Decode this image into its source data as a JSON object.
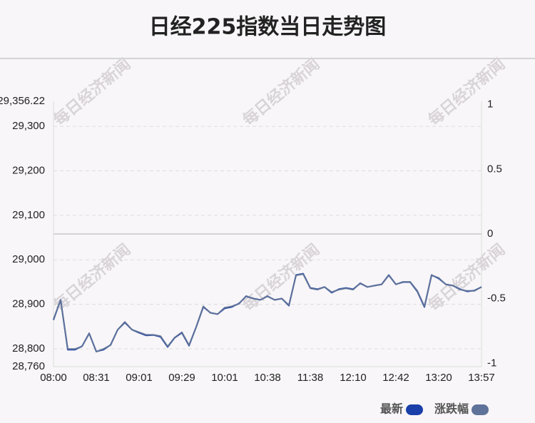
{
  "chart_data": {
    "type": "line",
    "title": "日经225指数当日走势图",
    "watermark": "每日经济新闻",
    "categories": [
      "08:00",
      null,
      null,
      null,
      null,
      null,
      "08:31",
      null,
      null,
      null,
      null,
      null,
      "09:01",
      null,
      null,
      null,
      null,
      null,
      "09:29",
      null,
      null,
      null,
      null,
      null,
      "10:01",
      null,
      null,
      null,
      null,
      null,
      "10:38",
      null,
      null,
      null,
      null,
      null,
      "11:38",
      null,
      null,
      null,
      null,
      null,
      "12:10",
      null,
      null,
      null,
      null,
      null,
      "12:42",
      null,
      null,
      null,
      null,
      null,
      "13:20",
      null,
      null,
      null,
      null,
      null,
      "13:57"
    ],
    "series": [
      {
        "name": "最新",
        "color": "#1a3fa8",
        "values": [
          28865,
          28910,
          28798,
          28798,
          28806,
          28835,
          28794,
          28798,
          28809,
          28843,
          28859,
          28843,
          28836,
          28830,
          28831,
          28827,
          28804,
          28825,
          28836,
          28807,
          28849,
          28894,
          28881,
          28878,
          28891,
          28894,
          28902,
          28918,
          28913,
          28910,
          28918,
          28910,
          28913,
          28897,
          28966,
          28969,
          28937,
          28934,
          28939,
          28926,
          28934,
          28937,
          28934,
          28947,
          28939,
          28942,
          28945,
          28966,
          28945,
          28950,
          28950,
          28929,
          28894,
          28966,
          28958,
          28945,
          28942,
          28934,
          28929,
          28931,
          28939
        ]
      },
      {
        "name": "涨跌幅",
        "color": "#5f7299",
        "axis": "y2",
        "values": [
          -0.66,
          -0.51,
          -0.89,
          -0.89,
          -0.87,
          -0.77,
          -0.91,
          -0.89,
          -0.86,
          -0.74,
          -0.68,
          -0.74,
          -0.76,
          -0.78,
          -0.78,
          -0.79,
          -0.87,
          -0.8,
          -0.76,
          -0.86,
          -0.72,
          -0.56,
          -0.61,
          -0.62,
          -0.57,
          -0.56,
          -0.54,
          -0.48,
          -0.5,
          -0.51,
          -0.48,
          -0.51,
          -0.5,
          -0.55,
          -0.32,
          -0.31,
          -0.42,
          -0.43,
          -0.41,
          -0.45,
          -0.43,
          -0.42,
          -0.43,
          -0.38,
          -0.41,
          -0.4,
          -0.39,
          -0.32,
          -0.39,
          -0.37,
          -0.37,
          -0.44,
          -0.56,
          -0.32,
          -0.34,
          -0.39,
          -0.4,
          -0.43,
          -0.44,
          -0.44,
          -0.41
        ]
      }
    ],
    "ylim": [
      28760,
      29356.22
    ],
    "yticks": [
      {
        "value": 28760,
        "label": "28,760"
      },
      {
        "value": 28800,
        "label": "28,800"
      },
      {
        "value": 28900,
        "label": "28,900"
      },
      {
        "value": 29000,
        "label": "29,000"
      },
      {
        "value": 29100,
        "label": "29,100"
      },
      {
        "value": 29200,
        "label": "29,200"
      },
      {
        "value": 29300,
        "label": "29,300"
      },
      {
        "value": 29356.22,
        "label": "29,356.22"
      }
    ],
    "y2lim": [
      -1.026,
      1.026
    ],
    "y2ticks": [
      -1,
      -0.5,
      0,
      0.5,
      1
    ],
    "grid": true
  }
}
